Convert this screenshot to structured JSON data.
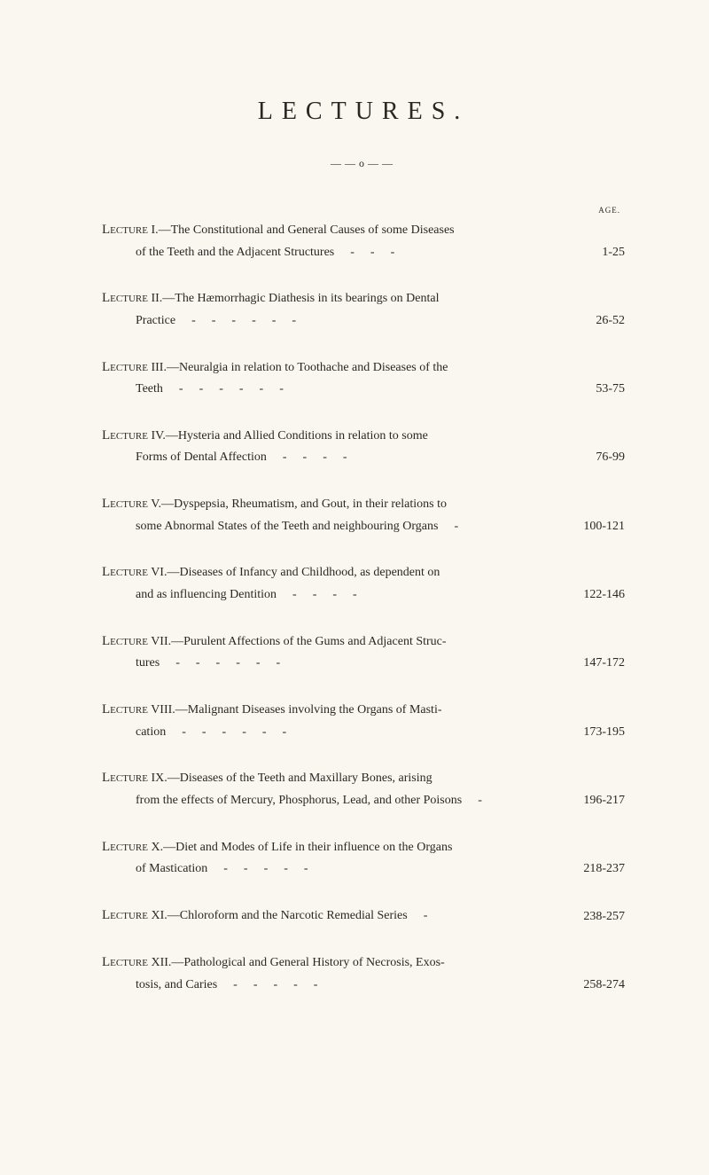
{
  "title": "LECTURES.",
  "divider": "——o——",
  "page_label": "AGE.",
  "entries": [
    {
      "lead": "Lecture",
      "num": " I.",
      "line1": "—The Constitutional and General Causes of some Diseases",
      "line2": "of the Teeth and the Adjacent Structures",
      "dashes": "---",
      "pages": "1-25"
    },
    {
      "lead": "Lecture",
      "num": " II.",
      "line1": "—The Hæmorrhagic Diathesis in its bearings on Dental",
      "line2": "Practice",
      "dashes": "------",
      "pages": "26-52"
    },
    {
      "lead": "Lecture",
      "num": " III.",
      "line1": "—Neuralgia in relation to Toothache and Diseases of the",
      "line2": "Teeth",
      "dashes": "------",
      "pages": "53-75"
    },
    {
      "lead": "Lecture",
      "num": " IV.",
      "line1": "—Hysteria and Allied Conditions in relation to some",
      "line2": "Forms of Dental Affection",
      "dashes": "----",
      "pages": "76-99"
    },
    {
      "lead": "Lecture",
      "num": " V.",
      "line1": "—Dyspepsia, Rheumatism, and Gout, in their relations to",
      "line2": "some Abnormal States of the Teeth and neighbouring Organs",
      "dashes": "-",
      "pages": "100-121"
    },
    {
      "lead": "Lecture",
      "num": " VI.",
      "line1": "—Diseases of Infancy and Childhood, as dependent on",
      "line2": "and as influencing Dentition",
      "dashes": "----",
      "pages": "122-146"
    },
    {
      "lead": "Lecture",
      "num": " VII.",
      "line1": "—Purulent Affections of the Gums and Adjacent Struc-",
      "line2": "tures",
      "dashes": "------",
      "pages": "147-172"
    },
    {
      "lead": "Lecture",
      "num": " VIII.",
      "line1": "—Malignant Diseases involving the Organs of Masti-",
      "line2": "cation",
      "dashes": "------",
      "pages": "173-195"
    },
    {
      "lead": "Lecture",
      "num": " IX.",
      "line1": "—Diseases of the Teeth and Maxillary Bones, arising",
      "line2": "from the effects of Mercury, Phosphorus, Lead, and other Poisons",
      "dashes": "-",
      "pages": "196-217"
    },
    {
      "lead": "Lecture",
      "num": " X.",
      "line1": "—Diet and Modes of Life in their influence on the Organs",
      "line2": "of Mastication",
      "dashes": "-----",
      "pages": "218-237"
    },
    {
      "lead": "Lecture",
      "num": " XI.",
      "line1": "—Chloroform and the Narcotic Remedial Series",
      "line2": "",
      "dashes": "-",
      "pages": "238-257",
      "single_line": true
    },
    {
      "lead": "Lecture",
      "num": " XII.",
      "line1": "—Pathological and General History of Necrosis, Exos-",
      "line2": "tosis, and Caries",
      "dashes": "-----",
      "pages": "258-274"
    }
  ]
}
